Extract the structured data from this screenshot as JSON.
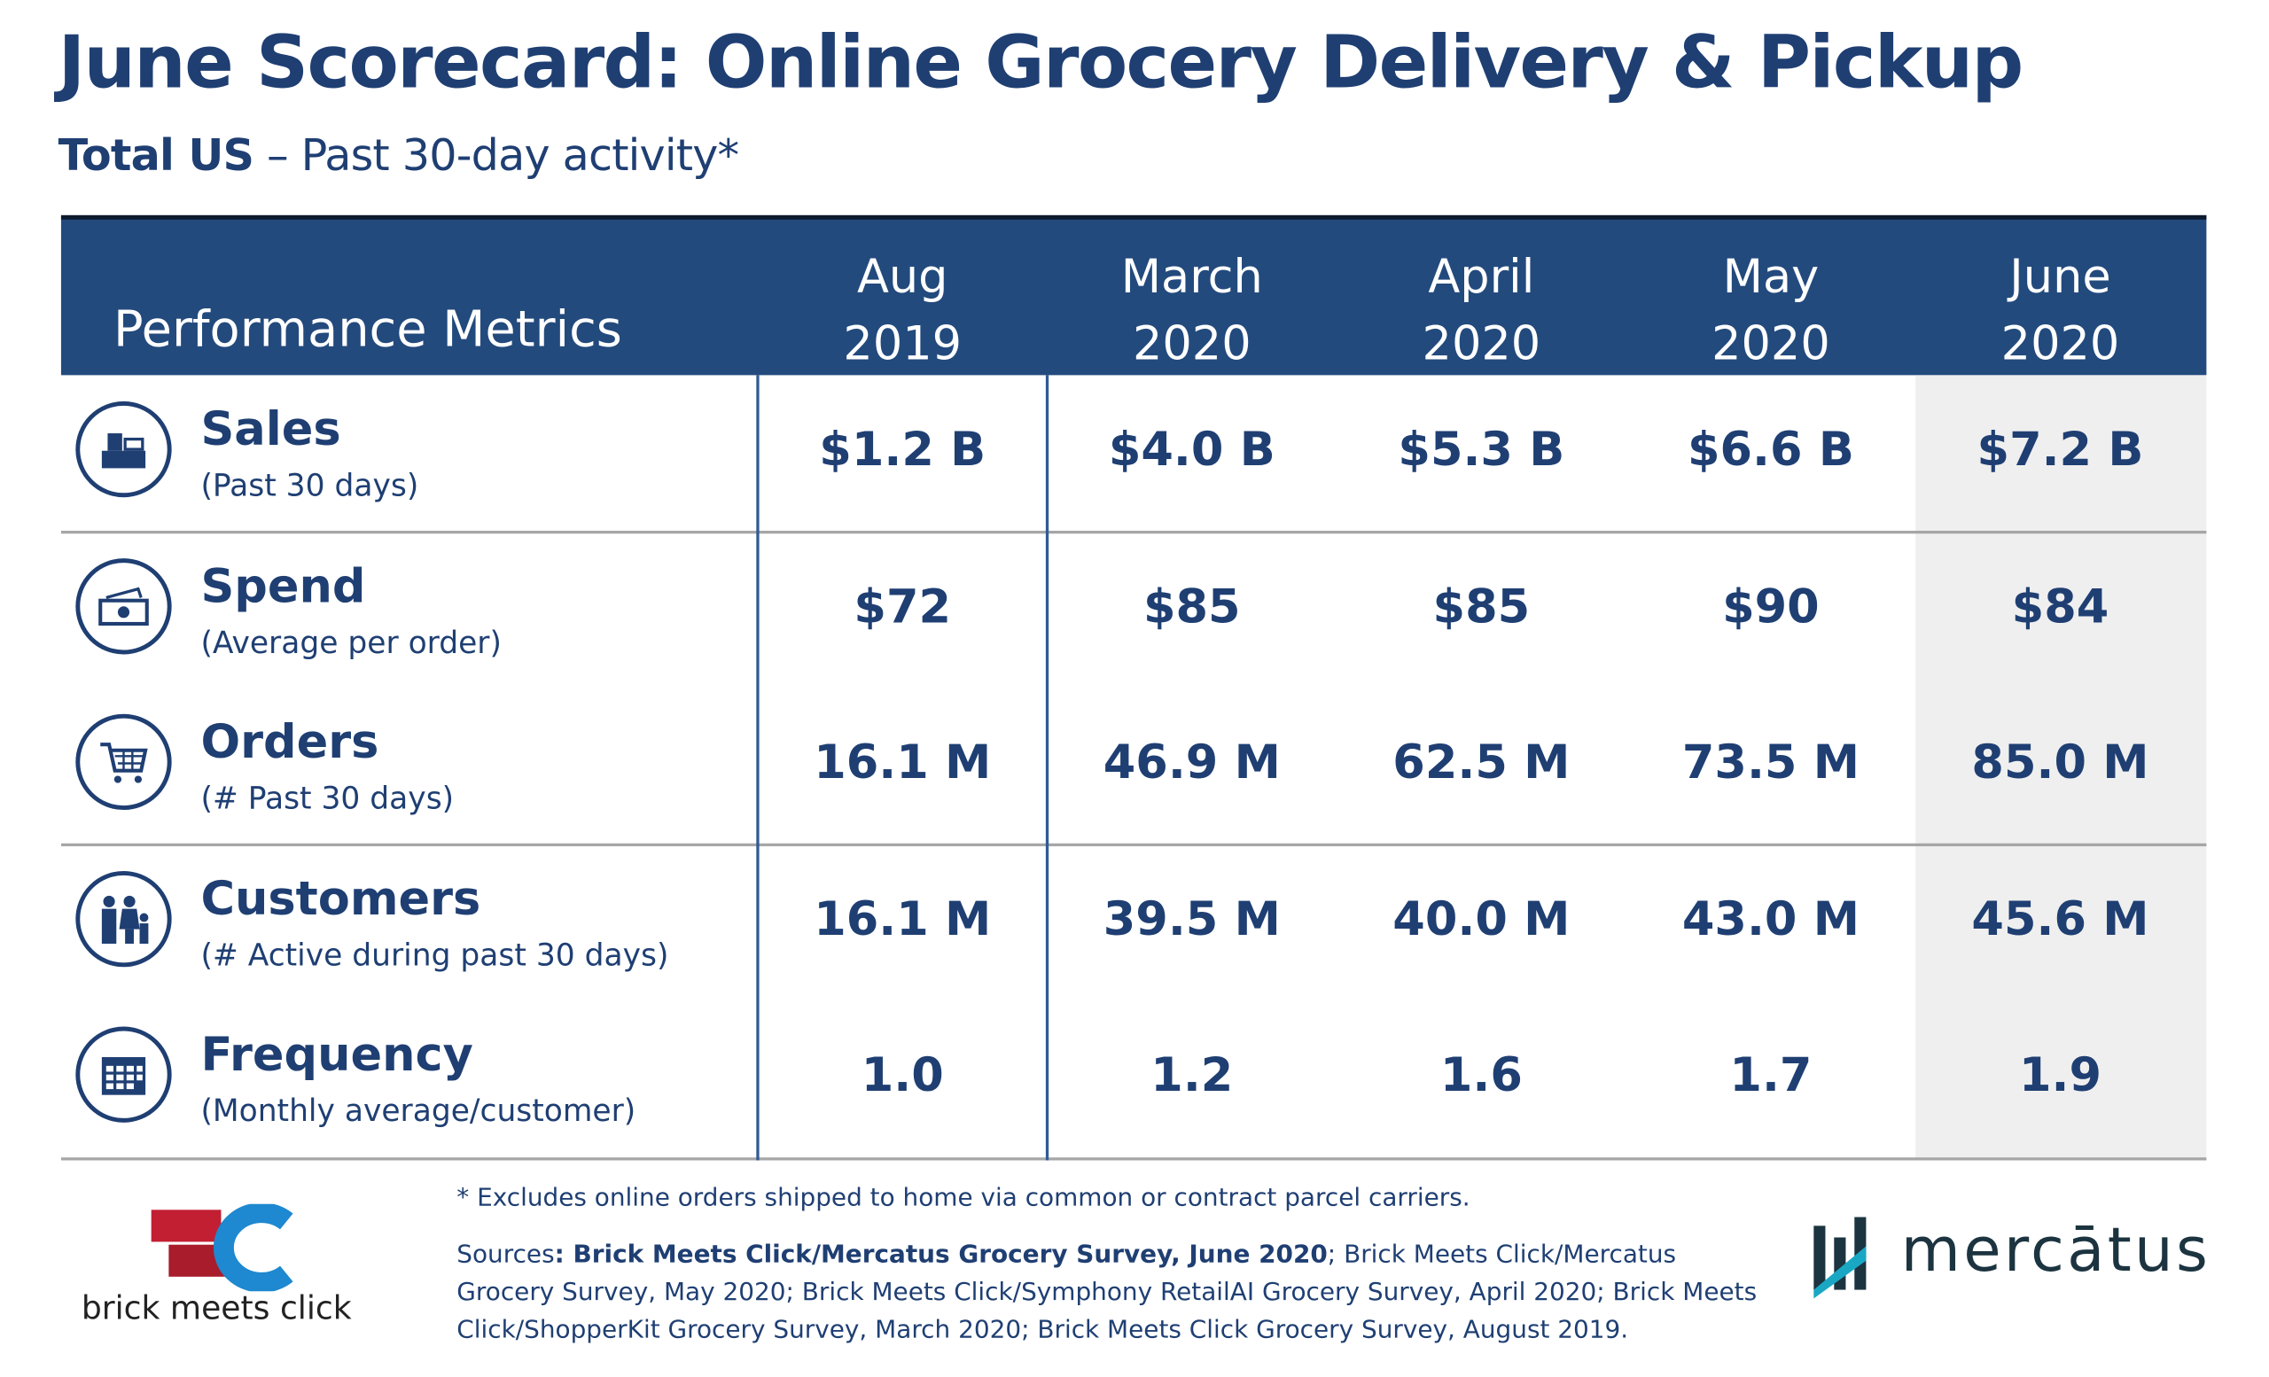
{
  "title": "June Scorecard: Online Grocery Delivery & Pickup",
  "subtitle": {
    "bold": "Total US",
    "rest": " – Past 30-day activity*"
  },
  "header": {
    "metric_label": "Performance Metrics",
    "columns": [
      {
        "month": "Aug",
        "year": "2019"
      },
      {
        "month": "March",
        "year": "2020"
      },
      {
        "month": "April",
        "year": "2020"
      },
      {
        "month": "May",
        "year": "2020"
      },
      {
        "month": "June",
        "year": "2020"
      }
    ]
  },
  "rows": [
    {
      "name": "Sales",
      "sub": "(Past 30 days)",
      "icon": "cash-register-icon",
      "values": [
        "$1.2 B",
        "$4.0 B",
        "$5.3 B",
        "$6.6 B",
        "$7.2 B"
      ]
    },
    {
      "name": "Spend",
      "sub": "(Average per order)",
      "icon": "money-icon",
      "values": [
        "$72",
        "$85",
        "$85",
        "$90",
        "$84"
      ]
    },
    {
      "name": "Orders",
      "sub": "(# Past 30 days)",
      "icon": "shopping-cart-icon",
      "values": [
        "16.1 M",
        "46.9 M",
        "62.5 M",
        "73.5 M",
        "85.0 M"
      ]
    },
    {
      "name": "Customers",
      "sub": "(# Active during past 30 days)",
      "icon": "family-icon",
      "values": [
        "16.1 M",
        "39.5 M",
        "40.0 M",
        "43.0 M",
        "45.6 M"
      ]
    },
    {
      "name": "Frequency",
      "sub": "(Monthly average/customer)",
      "icon": "calendar-icon",
      "values": [
        "1.0",
        "1.2",
        "1.6",
        "1.7",
        "1.9"
      ]
    }
  ],
  "footnote": "* Excludes online orders shipped to home via common or contract parcel carriers.",
  "sources": {
    "label": "Sources",
    "bold": ": Brick Meets Click/Mercatus Grocery Survey, June 2020",
    "rest": ";  Brick Meets Click/Mercatus Grocery Survey, May 2020; Brick Meets Click/Symphony RetailAI Grocery Survey, April 2020; Brick Meets Click/ShopperKit Grocery Survey, March 2020; Brick Meets Click Grocery Survey, August 2019."
  },
  "logos": {
    "left": "brick meets click",
    "right": "mercātus"
  },
  "colors": {
    "primary": "#1f3f73",
    "header_bg": "#234a7d",
    "highlight_col": "#efefef"
  }
}
